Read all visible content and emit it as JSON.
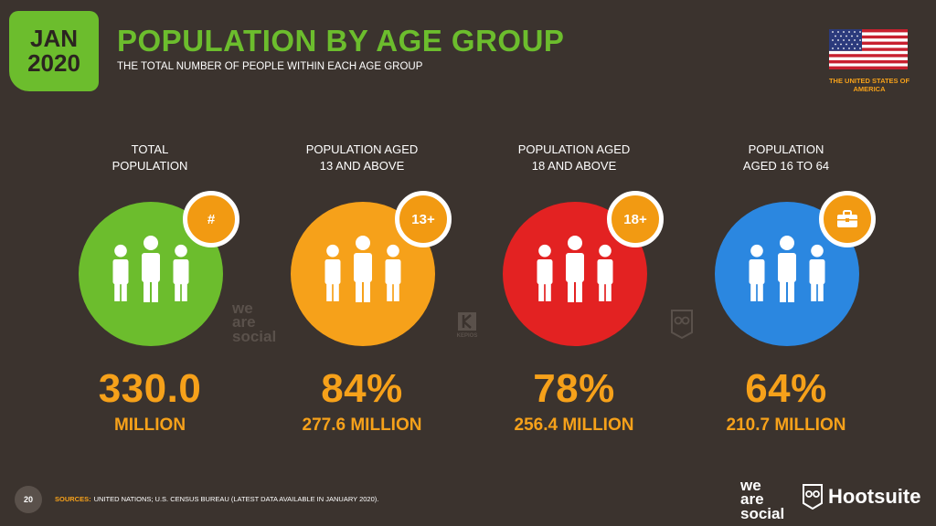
{
  "header": {
    "month": "JAN",
    "year": "2020",
    "title": "POPULATION BY AGE GROUP",
    "subtitle": "THE TOTAL NUMBER OF PEOPLE WITHIN EACH AGE GROUP",
    "country": "THE UNITED STATES OF AMERICA"
  },
  "stats": [
    {
      "heading_1": "TOTAL",
      "heading_2": "POPULATION",
      "badge": "#",
      "badge_icon": "hash-icon",
      "value": "330.0",
      "sub": "MILLION",
      "color": "#6cbd2d"
    },
    {
      "heading_1": "POPULATION AGED",
      "heading_2": "13 AND ABOVE",
      "badge": "13+",
      "value": "84%",
      "sub": "277.6 MILLION",
      "color": "#f6a11a"
    },
    {
      "heading_1": "POPULATION AGED",
      "heading_2": "18 AND ABOVE",
      "badge": "18+",
      "value": "78%",
      "sub": "256.4 MILLION",
      "color": "#e32222"
    },
    {
      "heading_1": "POPULATION",
      "heading_2": "AGED 16 TO 64",
      "badge": "",
      "badge_icon": "briefcase-icon",
      "value": "64%",
      "sub": "210.7 MILLION",
      "color": "#2b87e0"
    }
  ],
  "watermarks": {
    "we": "we",
    "are": "are",
    "social": "social",
    "kepios": "KEPIOS"
  },
  "footer": {
    "page": "20",
    "sources_label": "SOURCES:",
    "sources_text": "UNITED NATIONS; U.S. CENSUS BUREAU (LATEST DATA AVAILABLE IN JANUARY 2020).",
    "brand_we": "we",
    "brand_are": "are",
    "brand_social": "social",
    "brand_hootsuite": "Hootsuite"
  },
  "colors": {
    "background": "#3b332e",
    "accent_green": "#6cbd2d",
    "accent_orange": "#f6a11a"
  }
}
